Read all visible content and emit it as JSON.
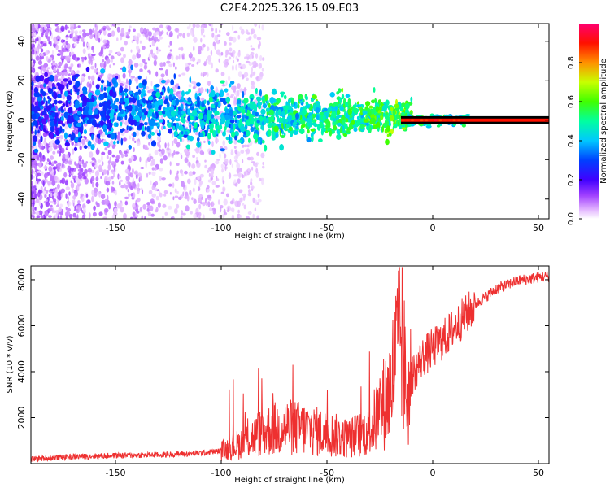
{
  "chart_data": [
    {
      "type": "heatmap",
      "title": "C2E4.2025.326.15.09.E03",
      "xlabel": "Height of straight line (km)",
      "ylabel": "Frequency (Hz)",
      "xlim": [
        -190,
        55
      ],
      "ylim": [
        -50,
        49
      ],
      "x_ticks": [
        -150,
        -100,
        -50,
        0,
        50
      ],
      "y_ticks": [
        -40,
        -20,
        0,
        20,
        40
      ],
      "colorbar": {
        "label": "Normalized spectral amplitude",
        "range": [
          0.0,
          1.0
        ],
        "ticks": [
          "0.0",
          "0.2",
          "0.4",
          "0.6",
          "0.8"
        ],
        "colors": [
          "#ffffff",
          "#c060ff",
          "#6000ff",
          "#0000ff",
          "#00c8ff",
          "#00ff60",
          "#c8ff00",
          "#ff8000",
          "#ff0000",
          "#ff0060"
        ]
      },
      "description_values": {
        "center_frequency_hz": 0,
        "line_segment_x": [
          -15,
          55
        ],
        "line_segment_amplitude": 0.9
      }
    },
    {
      "type": "line",
      "xlabel": "Height of straight line (km)",
      "ylabel": "SNR (10 * v/v)",
      "xlim": [
        -190,
        55
      ],
      "ylim": [
        0,
        8600
      ],
      "x_ticks": [
        -150,
        -100,
        -50,
        0,
        50
      ],
      "y_ticks": [
        2000,
        4000,
        6000,
        8000
      ],
      "series": [
        {
          "name": "SNR",
          "color": "#ee3030",
          "x": [
            -190,
            -170,
            -150,
            -130,
            -110,
            -100,
            -90,
            -80,
            -70,
            -60,
            -50,
            -40,
            -30,
            -20,
            -15,
            -12,
            -10,
            -5,
            0,
            5,
            10,
            20,
            30,
            40,
            50,
            55
          ],
          "y": [
            200,
            300,
            350,
            380,
            450,
            550,
            900,
            1400,
            1600,
            1500,
            1300,
            1100,
            1400,
            3200,
            5800,
            2600,
            3800,
            4600,
            5000,
            5400,
            5900,
            6900,
            7600,
            7950,
            8100,
            8150
          ]
        }
      ]
    }
  ]
}
